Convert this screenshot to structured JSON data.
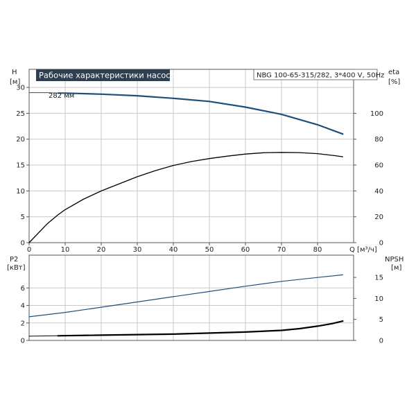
{
  "chart_data": [
    {
      "type": "line",
      "title": "Рабочие характеристики насоса",
      "model": "NBG 100-65-315/282, 3*400 V, 50Hz",
      "xlabel": "Q [м³/ч]",
      "ylabel_left": "H",
      "ylabel_left_unit": "[м]",
      "ylabel_right": "eta",
      "ylabel_right_unit": "[%]",
      "xlim": [
        0,
        90
      ],
      "ylim_left": [
        0,
        33.5
      ],
      "ylim_right": [
        0,
        134
      ],
      "xticks": [
        0,
        10,
        20,
        30,
        40,
        50,
        60,
        70,
        80
      ],
      "yticks_left": [
        0,
        5,
        10,
        15,
        20,
        25,
        30
      ],
      "yticks_right": [
        0,
        20,
        40,
        60,
        80,
        100
      ],
      "grid": true,
      "annotations": [
        {
          "text": "282 мм",
          "x": 5,
          "y": 29
        }
      ],
      "series": [
        {
          "key": "head",
          "axis": "left",
          "color": "#1f4e79",
          "thin_until": 8,
          "x": [
            0,
            5,
            8,
            10,
            20,
            30,
            40,
            50,
            60,
            70,
            80,
            87
          ],
          "y": [
            29,
            29,
            28.9,
            28.9,
            28.7,
            28.4,
            27.9,
            27.3,
            26.2,
            24.8,
            22.8,
            21
          ]
        },
        {
          "key": "efficiency",
          "axis": "right",
          "color": "#000000",
          "x": [
            0,
            5,
            8,
            10,
            15,
            20,
            25,
            30,
            35,
            40,
            45,
            50,
            55,
            60,
            65,
            70,
            75,
            80,
            85,
            87
          ],
          "y": [
            0,
            14.5,
            21.5,
            25.5,
            33.5,
            40,
            45.5,
            51,
            55.7,
            59.7,
            62.7,
            65,
            66.9,
            68.5,
            69.5,
            69.8,
            69.6,
            68.8,
            67.2,
            66.4
          ]
        }
      ]
    },
    {
      "type": "line",
      "xlim": [
        0,
        90
      ],
      "ylabel_left": "P2",
      "ylabel_left_unit": "[кВт]",
      "ylabel_right": "NPSH",
      "ylabel_right_unit": "[м]",
      "ylim_left": [
        0,
        9.75
      ],
      "ylim_right": [
        0,
        20.3
      ],
      "yticks_left": [
        0,
        2,
        4,
        6
      ],
      "yticks_right": [
        0,
        5,
        10,
        15
      ],
      "grid": true,
      "series": [
        {
          "key": "power",
          "axis": "left",
          "color": "#1f4e79",
          "x": [
            0,
            10,
            20,
            30,
            40,
            50,
            60,
            70,
            80,
            87
          ],
          "y": [
            2.7,
            3.2,
            3.8,
            4.4,
            5.0,
            5.6,
            6.2,
            6.75,
            7.2,
            7.5
          ]
        },
        {
          "key": "npsh",
          "axis": "right",
          "color": "#000000",
          "thin_until": 8,
          "x": [
            0,
            8,
            20,
            40,
            60,
            70,
            75,
            80,
            84,
            87
          ],
          "y": [
            1.0,
            1.1,
            1.25,
            1.5,
            2.0,
            2.4,
            2.8,
            3.4,
            4.0,
            4.6
          ]
        }
      ]
    }
  ]
}
